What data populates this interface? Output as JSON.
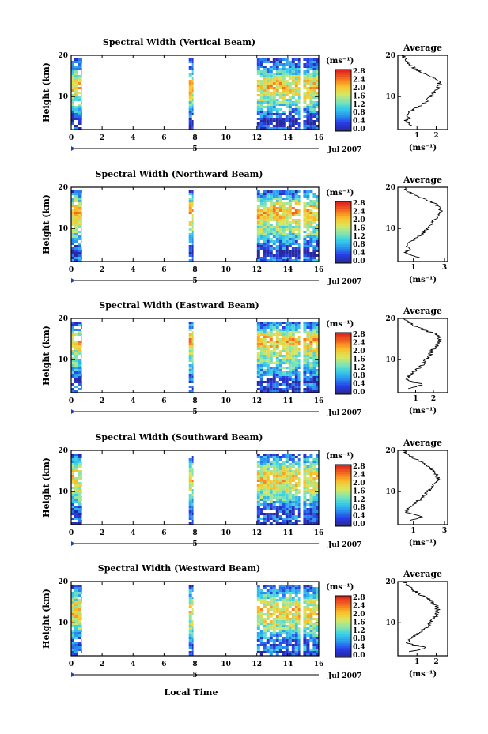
{
  "x_label": "Local Time",
  "date_label": "Jul 2007",
  "colorbar": {
    "unit": "(ms⁻¹)",
    "ticks": [
      "0.0",
      "0.4",
      "0.8",
      "1.2",
      "1.6",
      "2.0",
      "2.4",
      "2.8"
    ]
  },
  "average_title": "Average",
  "average_unit": "(ms⁻¹)",
  "chart_data": [
    {
      "type": "heatmap",
      "title": "Spectral Width (Vertical Beam)",
      "ylabel": "Height (km)",
      "xlabel": "Local Time",
      "x_ticks": [
        0,
        2,
        4,
        6,
        8,
        10,
        12,
        14,
        16
      ],
      "x_tick_labels": [
        "0",
        "2",
        "4",
        "6",
        "8",
        "10",
        "12",
        "14",
        "16"
      ],
      "xlim": [
        0,
        16
      ],
      "y_ticks": [
        10,
        20
      ],
      "ylim": [
        2,
        20
      ],
      "date_marker": {
        "x": 8,
        "label": "5"
      },
      "colorbar_range": [
        0,
        3.0
      ],
      "data_segments": [
        {
          "start": 0,
          "end": 0.7
        },
        {
          "start": 7.6,
          "end": 7.9
        },
        {
          "start": 12,
          "end": 14.8
        },
        {
          "start": 15,
          "end": 16
        }
      ],
      "average_profile": {
        "xlim": [
          0,
          2.6
        ],
        "x_ticks": [
          1,
          2
        ],
        "x_tick_labels": [
          "1",
          "2"
        ],
        "heights": [
          3,
          4,
          5,
          6,
          7,
          8,
          9,
          10,
          11,
          12,
          13,
          14,
          15,
          16,
          17,
          18,
          19,
          20
        ],
        "values": [
          0.8,
          0.4,
          0.6,
          0.5,
          0.9,
          1.3,
          1.5,
          1.7,
          1.9,
          2.1,
          2.2,
          2.0,
          1.7,
          1.2,
          0.8,
          0.6,
          0.4,
          0.3
        ]
      }
    },
    {
      "type": "heatmap",
      "title": "Spectral Width (Northward Beam)",
      "ylabel": "Height (km)",
      "xlabel": "Local Time",
      "x_ticks": [
        0,
        2,
        4,
        6,
        8,
        10,
        12,
        14,
        16
      ],
      "x_tick_labels": [
        "0",
        "2",
        "4",
        "6",
        "8",
        "10",
        "12",
        "14",
        "16"
      ],
      "xlim": [
        0,
        16
      ],
      "y_ticks": [
        10,
        20
      ],
      "ylim": [
        2,
        20
      ],
      "date_marker": {
        "x": 8,
        "label": "5"
      },
      "colorbar_range": [
        0,
        3.0
      ],
      "data_segments": [
        {
          "start": 0,
          "end": 0.7
        },
        {
          "start": 7.6,
          "end": 7.9
        },
        {
          "start": 12,
          "end": 14.8
        },
        {
          "start": 15,
          "end": 16
        }
      ],
      "average_profile": {
        "xlim": [
          0,
          3.2
        ],
        "x_ticks": [
          1,
          3
        ],
        "x_tick_labels": [
          "1",
          "3"
        ],
        "heights": [
          3,
          4,
          5,
          6,
          7,
          8,
          9,
          10,
          11,
          12,
          13,
          14,
          15,
          16,
          17,
          18,
          19,
          20
        ],
        "values": [
          1.4,
          0.5,
          0.7,
          0.6,
          0.9,
          1.3,
          1.7,
          1.9,
          2.1,
          2.3,
          2.6,
          2.8,
          2.7,
          2.4,
          1.8,
          1.2,
          0.6,
          0.4
        ]
      }
    },
    {
      "type": "heatmap",
      "title": "Spectral Width (Eastward Beam)",
      "ylabel": "Height (km)",
      "xlabel": "Local Time",
      "x_ticks": [
        0,
        2,
        4,
        6,
        8,
        10,
        12,
        14,
        16
      ],
      "x_tick_labels": [
        "0",
        "2",
        "4",
        "6",
        "8",
        "10",
        "12",
        "14",
        "16"
      ],
      "xlim": [
        0,
        16
      ],
      "y_ticks": [
        10,
        20
      ],
      "ylim": [
        2,
        20
      ],
      "date_marker": {
        "x": 8,
        "label": "5"
      },
      "colorbar_range": [
        0,
        3.0
      ],
      "data_segments": [
        {
          "start": 0,
          "end": 0.7
        },
        {
          "start": 7.6,
          "end": 7.9
        },
        {
          "start": 12,
          "end": 14.8
        },
        {
          "start": 15,
          "end": 16
        }
      ],
      "average_profile": {
        "xlim": [
          0,
          2.8
        ],
        "x_ticks": [
          1,
          2
        ],
        "x_tick_labels": [
          "1",
          "2"
        ],
        "heights": [
          3,
          4,
          5,
          6,
          7,
          8,
          9,
          10,
          11,
          12,
          13,
          14,
          15,
          16,
          17,
          18,
          19,
          20
        ],
        "values": [
          0.7,
          1.4,
          0.5,
          0.6,
          0.9,
          1.2,
          1.4,
          1.6,
          1.8,
          1.9,
          2.1,
          2.3,
          2.4,
          2.2,
          1.6,
          1.0,
          0.6,
          0.4
        ]
      }
    },
    {
      "type": "heatmap",
      "title": "Spectral Width (Southward Beam)",
      "ylabel": "Height (km)",
      "xlabel": "Local Time",
      "x_ticks": [
        0,
        2,
        4,
        6,
        8,
        10,
        12,
        14,
        16
      ],
      "x_tick_labels": [
        "0",
        "2",
        "4",
        "6",
        "8",
        "10",
        "12",
        "14",
        "16"
      ],
      "xlim": [
        0,
        16
      ],
      "y_ticks": [
        10,
        20
      ],
      "ylim": [
        2,
        20
      ],
      "date_marker": {
        "x": 8,
        "label": "5"
      },
      "colorbar_range": [
        0,
        3.0
      ],
      "data_segments": [
        {
          "start": 0,
          "end": 0.7
        },
        {
          "start": 7.6,
          "end": 7.9
        },
        {
          "start": 12,
          "end": 14.8
        },
        {
          "start": 15,
          "end": 16
        }
      ],
      "average_profile": {
        "xlim": [
          0,
          3.2
        ],
        "x_ticks": [
          1,
          3
        ],
        "x_tick_labels": [
          "1",
          "3"
        ],
        "heights": [
          3,
          4,
          5,
          6,
          7,
          8,
          9,
          10,
          11,
          12,
          13,
          14,
          15,
          16,
          17,
          18,
          19,
          20
        ],
        "values": [
          0.8,
          1.6,
          0.5,
          0.7,
          1.0,
          1.4,
          1.7,
          1.9,
          2.2,
          2.4,
          2.6,
          2.5,
          2.3,
          2.0,
          1.6,
          1.1,
          0.6,
          0.4
        ]
      }
    },
    {
      "type": "heatmap",
      "title": "Spectral Width (Westward Beam)",
      "ylabel": "Height (km)",
      "xlabel": "Local Time",
      "x_ticks": [
        0,
        2,
        4,
        6,
        8,
        10,
        12,
        14,
        16
      ],
      "x_tick_labels": [
        "0",
        "2",
        "4",
        "6",
        "8",
        "10",
        "12",
        "14",
        "16"
      ],
      "xlim": [
        0,
        16
      ],
      "y_ticks": [
        10,
        20
      ],
      "ylim": [
        2,
        20
      ],
      "date_marker": {
        "x": 8,
        "label": "5"
      },
      "colorbar_range": [
        0,
        3.0
      ],
      "data_segments": [
        {
          "start": 0,
          "end": 0.7
        },
        {
          "start": 7.6,
          "end": 7.9
        },
        {
          "start": 12,
          "end": 14.8
        },
        {
          "start": 15,
          "end": 16
        }
      ],
      "average_profile": {
        "xlim": [
          0,
          2.6
        ],
        "x_ticks": [
          1,
          2
        ],
        "x_tick_labels": [
          "1",
          "2"
        ],
        "heights": [
          3,
          4,
          5,
          6,
          7,
          8,
          9,
          10,
          11,
          12,
          13,
          14,
          15,
          16,
          17,
          18,
          19,
          20
        ],
        "values": [
          0.7,
          1.5,
          0.5,
          0.6,
          0.9,
          1.2,
          1.5,
          1.7,
          1.9,
          2.0,
          2.1,
          2.0,
          1.8,
          1.5,
          1.1,
          0.8,
          0.5,
          0.3
        ]
      }
    }
  ]
}
